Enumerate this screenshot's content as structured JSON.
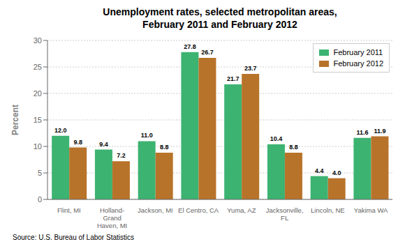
{
  "chart_data": {
    "type": "bar",
    "title": "Unemployment rates, selected metropolitan areas,\nFebruary 2011 and February 2012",
    "categories": [
      "Flint, MI",
      "Holland-\nGrand\nHaven, MI",
      "Jackson, MI",
      "El Centro, CA",
      "Yuma, AZ",
      "Jacksonville,\nFL",
      "Lincoln, NE",
      "Yakima WA"
    ],
    "series": [
      {
        "name": "February 2011",
        "color": "#3CB371",
        "values": [
          12.0,
          9.4,
          11.0,
          27.8,
          21.7,
          10.4,
          4.4,
          11.6
        ],
        "value_labels": [
          "12.0",
          "9.4",
          "11.0",
          "27.8",
          "21.7",
          "10.4",
          "4.4",
          "11.6"
        ]
      },
      {
        "name": "February 2012",
        "color": "#B8732A",
        "values": [
          9.8,
          7.2,
          8.8,
          26.7,
          23.7,
          8.8,
          4.0,
          11.9
        ],
        "value_labels": [
          "9.8",
          "7.2",
          "8.8",
          "26.7",
          "23.7",
          "8.8",
          "4.0",
          "11.9"
        ]
      }
    ],
    "ylabel": "Percent",
    "ylim": [
      0,
      30
    ],
    "yticks": [
      0,
      5,
      10,
      15,
      20,
      25,
      30
    ],
    "grid": true,
    "legend": "upper right",
    "data_labels": true,
    "annotations": [
      "Source: U.S. Bureau of Labor Statistics"
    ]
  }
}
